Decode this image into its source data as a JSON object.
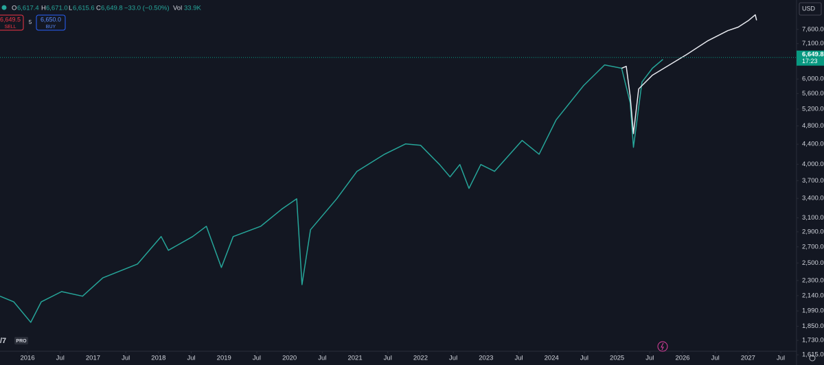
{
  "header": {
    "open_label": "O",
    "open": "6,617.4",
    "high_label": "H",
    "high": "6,671.0",
    "low_label": "L",
    "low": "6,615.6",
    "close_label": "C",
    "close": "6,649.8",
    "change": "−33.0 (−0.50%)",
    "volume_label": "Vol",
    "volume": "33.9K"
  },
  "trade": {
    "sell_price": "6,649.5",
    "sell_label": "SELL",
    "quantity": "5",
    "buy_price": "6,650.0",
    "buy_label": "BUY"
  },
  "currency": "USD",
  "countdown": "17:23",
  "logo_badge": "PRO",
  "chart_data": {
    "type": "line",
    "log_scale": true,
    "grid": false,
    "xlim": [
      2015.58,
      2027.74
    ],
    "ylim": [
      1600,
      8740
    ],
    "xticks": [
      {
        "value": 2016,
        "label": "2016"
      },
      {
        "value": 2016.5,
        "label": "Jul"
      },
      {
        "value": 2017,
        "label": "2017"
      },
      {
        "value": 2017.5,
        "label": "Jul"
      },
      {
        "value": 2018,
        "label": "2018"
      },
      {
        "value": 2018.5,
        "label": "Jul"
      },
      {
        "value": 2019,
        "label": "2019"
      },
      {
        "value": 2019.5,
        "label": "Jul"
      },
      {
        "value": 2020,
        "label": "2020"
      },
      {
        "value": 2020.5,
        "label": "Jul"
      },
      {
        "value": 2021,
        "label": "2021"
      },
      {
        "value": 2021.5,
        "label": "Jul"
      },
      {
        "value": 2022,
        "label": "2022"
      },
      {
        "value": 2022.5,
        "label": "Jul"
      },
      {
        "value": 2023,
        "label": "2023"
      },
      {
        "value": 2023.5,
        "label": "Jul"
      },
      {
        "value": 2024,
        "label": "2024"
      },
      {
        "value": 2024.5,
        "label": "Jul"
      },
      {
        "value": 2025,
        "label": "2025"
      },
      {
        "value": 2025.5,
        "label": "Jul"
      },
      {
        "value": 2026,
        "label": "2026"
      },
      {
        "value": 2026.5,
        "label": "Jul"
      },
      {
        "value": 2027,
        "label": "2027"
      },
      {
        "value": 2027.5,
        "label": "Jul"
      }
    ],
    "yticks": [
      {
        "value": 1615,
        "label": "1,615.0"
      },
      {
        "value": 1730,
        "label": "1,730.0"
      },
      {
        "value": 1850,
        "label": "1,850.0"
      },
      {
        "value": 1990,
        "label": "1,990.0"
      },
      {
        "value": 2140,
        "label": "2,140.0"
      },
      {
        "value": 2300,
        "label": "2,300.0"
      },
      {
        "value": 2500,
        "label": "2,500.0"
      },
      {
        "value": 2700,
        "label": "2,700.0"
      },
      {
        "value": 2900,
        "label": "2,900.0"
      },
      {
        "value": 3100,
        "label": "3,100.0"
      },
      {
        "value": 3400,
        "label": "3,400.0"
      },
      {
        "value": 3700,
        "label": "3,700.0"
      },
      {
        "value": 4000,
        "label": "4,000.0"
      },
      {
        "value": 4400,
        "label": "4,400.0"
      },
      {
        "value": 4800,
        "label": "4,800.0"
      },
      {
        "value": 5200,
        "label": "5,200.0"
      },
      {
        "value": 5600,
        "label": "5,600.0"
      },
      {
        "value": 6000,
        "label": "6,000.0"
      },
      {
        "value": 7100,
        "label": "7,100.0"
      },
      {
        "value": 7600,
        "label": "7,600.0"
      }
    ],
    "last_price": {
      "value": 6649.8,
      "label": "6,649.8"
    },
    "last_price_color": "#089981",
    "series": [
      {
        "color": "#26a69a",
        "x": [
          2015.58,
          2015.79,
          2016.05,
          2016.21,
          2016.52,
          2016.84,
          2017.15,
          2017.68,
          2018.04,
          2018.15,
          2018.52,
          2018.73,
          2018.96,
          2019.14,
          2019.56,
          2019.88,
          2020.11,
          2020.19,
          2020.32,
          2020.72,
          2021.03,
          2021.45,
          2021.77,
          2022.0,
          2022.29,
          2022.45,
          2022.6,
          2022.74,
          2022.92,
          2023.13,
          2023.55,
          2023.81,
          2024.07,
          2024.49,
          2024.81,
          2025.07,
          2025.2,
          2025.25,
          2025.38,
          2025.54,
          2025.7
        ],
        "values": [
          2135,
          2078,
          1885,
          2078,
          2182,
          2135,
          2330,
          2488,
          2835,
          2656,
          2835,
          2977,
          2447,
          2835,
          2977,
          3230,
          3393,
          2255,
          2929,
          3393,
          3867,
          4195,
          4406,
          4379,
          3995,
          3766,
          3995,
          3565,
          3995,
          3867,
          4479,
          4195,
          4941,
          5818,
          6418,
          6315,
          5362,
          4336,
          5914,
          6315,
          6587
        ]
      },
      {
        "color": "#e8eaf0",
        "x": [
          2025.07,
          2025.14,
          2025.2,
          2025.25,
          2025.33,
          2025.54,
          2025.8,
          2026.06,
          2026.38,
          2026.69,
          2026.85,
          2027.01,
          2027.11,
          2027.13
        ],
        "values": [
          6315,
          6374,
          5539,
          4627,
          5725,
          6110,
          6418,
          6739,
          7192,
          7554,
          7682,
          7936,
          8146,
          7936
        ]
      }
    ]
  }
}
